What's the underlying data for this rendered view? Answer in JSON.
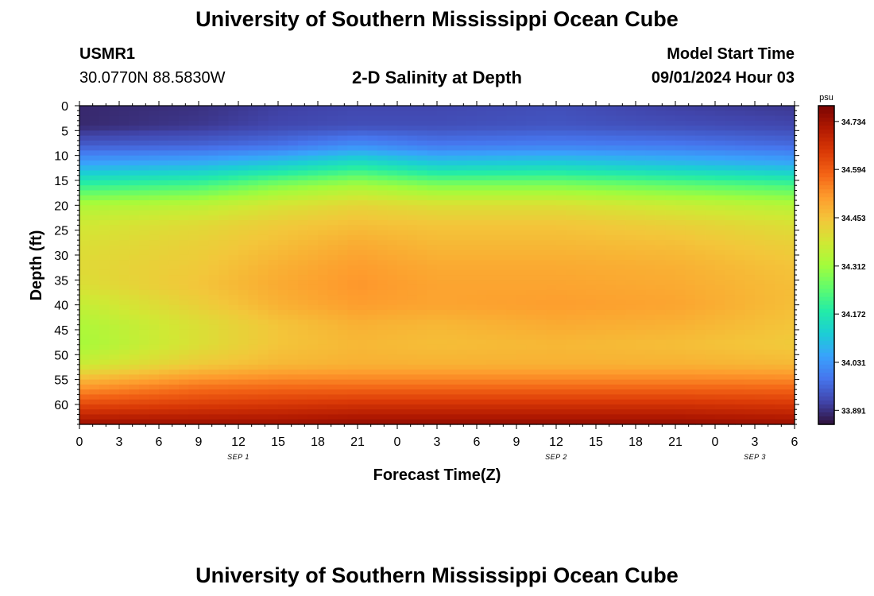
{
  "header": {
    "title": "University of Southern Mississippi Ocean Cube",
    "station_id": "USMR1",
    "station_coords": "30.0770N  88.5830W",
    "plot_title": "2-D Salinity at Depth",
    "model_start_label": "Model Start Time",
    "model_start_value": "09/01/2024 Hour 03"
  },
  "footer": {
    "title": "University of Southern Mississippi Ocean Cube"
  },
  "chart_data": {
    "type": "heatmap",
    "title": "2-D Salinity at Depth",
    "xlabel": "Forecast Time(Z)",
    "ylabel": "Depth (ft)",
    "x_tick_labels": [
      "0",
      "3",
      "6",
      "9",
      "12",
      "15",
      "18",
      "21",
      "0",
      "3",
      "6",
      "9",
      "12",
      "15",
      "18",
      "21",
      "0",
      "3",
      "6"
    ],
    "x_range_hours": [
      0,
      54
    ],
    "date_labels": [
      {
        "text": "SEP 1",
        "hour": 12
      },
      {
        "text": "SEP 2",
        "hour": 36
      },
      {
        "text": "SEP 3",
        "hour": 51
      }
    ],
    "y_ticks": [
      0,
      5,
      10,
      15,
      20,
      25,
      30,
      35,
      40,
      45,
      50,
      55,
      60
    ],
    "ylim": [
      0,
      64
    ],
    "y_reversed": true,
    "colorbar": {
      "unit": "psu",
      "min": 33.85,
      "max": 34.78,
      "tick_values": [
        33.891,
        34.031,
        34.172,
        34.312,
        34.453,
        34.594,
        34.734
      ],
      "tick_labels": [
        "33.891",
        "34.031",
        "34.172",
        "34.312",
        "34.453",
        "34.594",
        "34.734"
      ],
      "colormap": [
        "#30123b",
        "#4145ab",
        "#4675ed",
        "#39a2fc",
        "#1bcfd4",
        "#24eca6",
        "#61fc6c",
        "#a4fc3b",
        "#d1e834",
        "#f3c63a",
        "#fe9b2d",
        "#f36315",
        "#d93806",
        "#b11901",
        "#7a0403"
      ]
    },
    "profile_depths": [
      0,
      4,
      8,
      12,
      16,
      20,
      24,
      28,
      32,
      36,
      40,
      44,
      48,
      52,
      56,
      60,
      64
    ],
    "profiles": [
      {
        "hour": 0,
        "values": [
          33.88,
          33.88,
          33.95,
          34.06,
          34.2,
          34.33,
          34.38,
          34.4,
          34.41,
          34.4,
          34.36,
          34.33,
          34.32,
          34.37,
          34.5,
          34.62,
          34.74
        ]
      },
      {
        "hour": 9,
        "values": [
          33.89,
          33.9,
          33.96,
          34.08,
          34.22,
          34.35,
          34.41,
          34.43,
          34.44,
          34.45,
          34.43,
          34.4,
          34.4,
          34.44,
          34.55,
          34.64,
          34.74
        ]
      },
      {
        "hour": 15,
        "values": [
          33.91,
          33.92,
          33.98,
          34.12,
          34.28,
          34.39,
          34.44,
          34.46,
          34.48,
          34.49,
          34.48,
          34.45,
          34.45,
          34.47,
          34.56,
          34.65,
          34.74
        ]
      },
      {
        "hour": 21,
        "values": [
          33.92,
          33.93,
          34.02,
          34.17,
          34.32,
          34.42,
          34.46,
          34.49,
          34.51,
          34.52,
          34.51,
          34.48,
          34.47,
          34.48,
          34.56,
          34.66,
          34.75
        ]
      },
      {
        "hour": 27,
        "values": [
          33.92,
          33.93,
          33.99,
          34.12,
          34.28,
          34.4,
          34.45,
          34.47,
          34.49,
          34.5,
          34.5,
          34.47,
          34.46,
          34.48,
          34.56,
          34.66,
          34.75
        ]
      },
      {
        "hour": 36,
        "values": [
          33.93,
          33.94,
          34.0,
          34.13,
          34.28,
          34.4,
          34.45,
          34.47,
          34.49,
          34.5,
          34.51,
          34.49,
          34.47,
          34.48,
          34.56,
          34.66,
          34.75
        ]
      },
      {
        "hour": 45,
        "values": [
          33.91,
          33.93,
          33.99,
          34.1,
          34.25,
          34.37,
          34.43,
          34.46,
          34.48,
          34.49,
          34.5,
          34.48,
          34.46,
          34.48,
          34.56,
          34.66,
          34.75
        ]
      },
      {
        "hour": 54,
        "values": [
          33.9,
          33.92,
          33.97,
          34.07,
          34.22,
          34.34,
          34.4,
          34.43,
          34.45,
          34.46,
          34.46,
          34.45,
          34.44,
          34.47,
          34.56,
          34.65,
          34.74
        ]
      }
    ],
    "grid": false
  }
}
